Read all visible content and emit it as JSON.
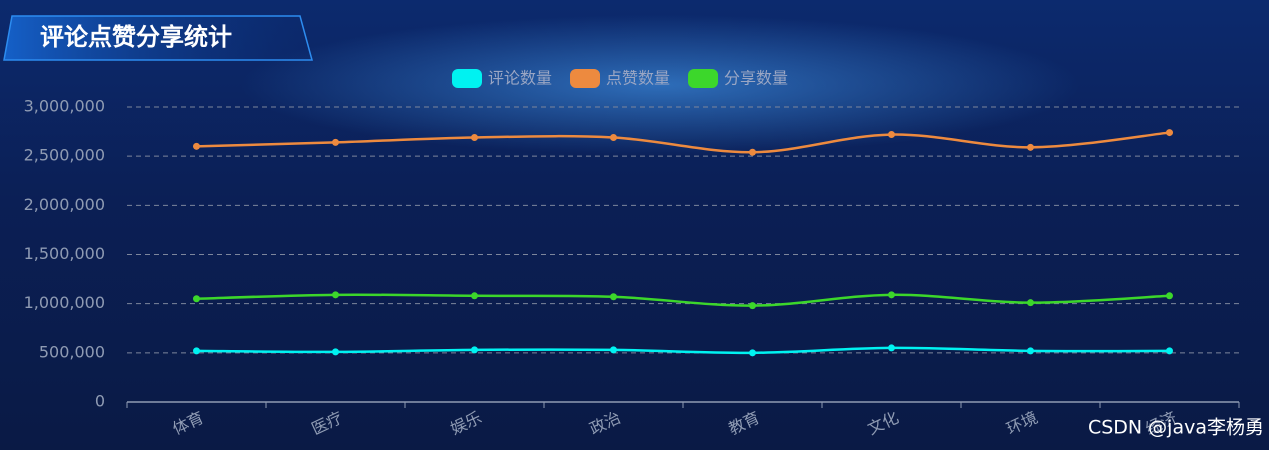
{
  "chart_data": {
    "type": "line",
    "title": "评论点赞分享统计",
    "categories": [
      "体育",
      "医疗",
      "娱乐",
      "政治",
      "教育",
      "文化",
      "环境",
      "经济"
    ],
    "series": [
      {
        "name": "评论数量",
        "color": "#00f2f1",
        "values": [
          520000,
          510000,
          530000,
          530000,
          500000,
          550000,
          520000,
          520000
        ]
      },
      {
        "name": "点赞数量",
        "color": "#ed8a3f",
        "values": [
          2600000,
          2640000,
          2690000,
          2690000,
          2540000,
          2720000,
          2590000,
          2740000
        ]
      },
      {
        "name": "分享数量",
        "color": "#3cd72b",
        "values": [
          1050000,
          1090000,
          1080000,
          1070000,
          980000,
          1090000,
          1010000,
          1080000
        ]
      }
    ],
    "ylim": [
      0,
      3000000
    ],
    "yticks": [
      0,
      {
        "value": 500000,
        "label": "500,000"
      },
      {
        "value": 1000000,
        "label": "1,000,000"
      },
      {
        "value": 1500000,
        "label": "1,500,000"
      },
      {
        "value": 2000000,
        "label": "2,000,000"
      },
      {
        "value": 2500000,
        "label": "2,500,000"
      },
      {
        "value": 3000000,
        "label": "3,000,000"
      }
    ],
    "grid": true,
    "watermark": "CSDN @java李杨勇"
  }
}
